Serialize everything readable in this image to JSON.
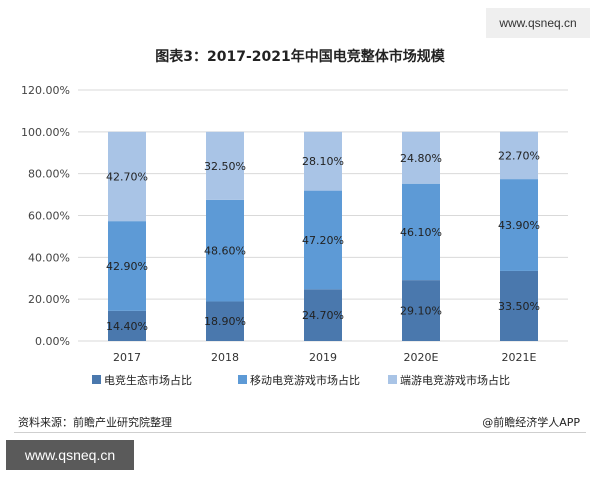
{
  "watermark_top": "www.qsneq.cn",
  "watermark_bottom": "www.qsneq.cn",
  "footer": {
    "source": "资料来源：前瞻产业研究院整理",
    "brand": "@前瞻经济学人APP"
  },
  "chart_data": {
    "type": "bar",
    "stacked": true,
    "title": "图表3：2017-2021年中国电竞整体市场规模",
    "categories": [
      "2017",
      "2018",
      "2019",
      "2020E",
      "2021E"
    ],
    "series": [
      {
        "name": "电竞生态市场占比",
        "values": [
          14.4,
          18.9,
          24.7,
          29.1,
          33.5
        ],
        "labels": [
          "14.40%",
          "18.90%",
          "24.70%",
          "29.10%",
          "33.50%"
        ],
        "color": "#4a78ad"
      },
      {
        "name": "移动电竞游戏市场占比",
        "values": [
          42.9,
          48.6,
          47.2,
          46.1,
          43.9
        ],
        "labels": [
          "42.90%",
          "48.60%",
          "47.20%",
          "46.10%",
          "43.90%"
        ],
        "color": "#5d9ad6"
      },
      {
        "name": "端游电竞游戏市场占比",
        "values": [
          42.7,
          32.5,
          28.1,
          24.8,
          22.7
        ],
        "labels": [
          "42.70%",
          "32.50%",
          "28.10%",
          "24.80%",
          "22.70%"
        ],
        "color": "#a9c4e6"
      }
    ],
    "ylim": [
      0,
      120
    ],
    "yticks": [
      0,
      20,
      40,
      60,
      80,
      100,
      120
    ],
    "ytick_labels": [
      "0.00%",
      "20.00%",
      "40.00%",
      "60.00%",
      "80.00%",
      "100.00%",
      "120.00%"
    ],
    "grid": true,
    "legend_position": "bottom"
  }
}
